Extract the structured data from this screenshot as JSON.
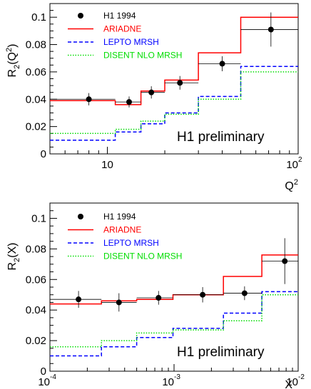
{
  "chart_data": [
    {
      "type": "line",
      "xscale": "log",
      "xlim": [
        5,
        100
      ],
      "ylim": [
        0,
        0.11
      ],
      "ylabel_main": "R",
      "ylabel_sub": "2",
      "ylabel_arg": "(Q",
      "ylabel_arg_sup": "2",
      "ylabel_close": ")",
      "xlabel_main": "Q",
      "xlabel_sup": "2",
      "x_ticks": [
        {
          "value": 10,
          "label": "10",
          "exp": ""
        },
        {
          "value": 100,
          "label": "10",
          "exp": "2"
        }
      ],
      "y_ticks": [
        {
          "value": 0,
          "label": "0"
        },
        {
          "value": 0.02,
          "label": "0.02"
        },
        {
          "value": 0.04,
          "label": "0.04"
        },
        {
          "value": 0.06,
          "label": "0.06"
        },
        {
          "value": 0.08,
          "label": "0.08"
        },
        {
          "value": 0.1,
          "label": "0.1"
        }
      ],
      "annotation": "H1 preliminary",
      "bin_edges": [
        5,
        11,
        15,
        20,
        30,
        50,
        100
      ],
      "data": {
        "name": "H1 1994",
        "x": [
          8,
          13,
          17,
          24,
          40,
          72
        ],
        "y": [
          0.04,
          0.038,
          0.045,
          0.052,
          0.066,
          0.091
        ],
        "yerr": [
          0.0045,
          0.004,
          0.0045,
          0.005,
          0.0055,
          0.0125
        ],
        "xlo": [
          5,
          11,
          15,
          20,
          30,
          50
        ],
        "xhi": [
          11,
          15,
          20,
          30,
          50,
          100
        ]
      },
      "series": [
        {
          "name": "ARIADNE",
          "color": "#ff0000",
          "style": "solid",
          "values": [
            0.039,
            0.036,
            0.046,
            0.054,
            0.074,
            0.1
          ]
        },
        {
          "name": "LEPTO MRSH",
          "color": "#0000ff",
          "style": "dashed",
          "values": [
            0.01,
            0.016,
            0.022,
            0.03,
            0.042,
            0.064
          ]
        },
        {
          "name": "DISENT NLO MRSH",
          "color": "#00dd00",
          "style": "dotted",
          "values": [
            0.015,
            0.018,
            0.024,
            0.029,
            0.04,
            0.06
          ]
        }
      ]
    },
    {
      "type": "line",
      "xscale": "log",
      "xlim": [
        0.0001,
        0.01
      ],
      "ylim": [
        0,
        0.11
      ],
      "ylabel_main": "R",
      "ylabel_sub": "2",
      "ylabel_arg": "(X)",
      "ylabel_arg_sup": "",
      "ylabel_close": "",
      "xlabel_main": "X",
      "xlabel_sup": "",
      "x_ticks": [
        {
          "value": 0.0001,
          "label": "10",
          "exp": "-4"
        },
        {
          "value": 0.001,
          "label": "10",
          "exp": "-3"
        },
        {
          "value": 0.01,
          "label": "10",
          "exp": "-2"
        }
      ],
      "y_ticks": [
        {
          "value": 0,
          "label": "0"
        },
        {
          "value": 0.02,
          "label": "0.02"
        },
        {
          "value": 0.04,
          "label": "0.04"
        },
        {
          "value": 0.06,
          "label": "0.06"
        },
        {
          "value": 0.08,
          "label": "0.08"
        },
        {
          "value": 0.1,
          "label": "0.1"
        }
      ],
      "annotation": "H1 preliminary",
      "bin_edges": [
        0.0001,
        0.00026,
        0.0005,
        0.00098,
        0.0025,
        0.0051,
        0.01
      ],
      "data": {
        "name": "H1 1994",
        "x": [
          0.00017,
          0.00036,
          0.00075,
          0.0017,
          0.0037,
          0.0078
        ],
        "y": [
          0.047,
          0.045,
          0.048,
          0.05,
          0.051,
          0.072
        ],
        "yerr": [
          0.0055,
          0.006,
          0.0045,
          0.005,
          0.0045,
          0.015
        ],
        "xlo": [
          0.0001,
          0.00026,
          0.0005,
          0.00098,
          0.0025,
          0.0051
        ],
        "xhi": [
          0.00026,
          0.0005,
          0.00098,
          0.0025,
          0.0051,
          0.01
        ]
      },
      "series": [
        {
          "name": "ARIADNE",
          "color": "#ff0000",
          "style": "solid",
          "values": [
            0.044,
            0.046,
            0.047,
            0.05,
            0.062,
            0.076
          ]
        },
        {
          "name": "LEPTO MRSH",
          "color": "#0000ff",
          "style": "dashed",
          "values": [
            0.01,
            0.016,
            0.022,
            0.028,
            0.038,
            0.052
          ]
        },
        {
          "name": "DISENT NLO MRSH",
          "color": "#00dd00",
          "style": "dotted",
          "values": [
            0.016,
            0.02,
            0.025,
            0.027,
            0.033,
            0.05
          ]
        }
      ]
    }
  ]
}
